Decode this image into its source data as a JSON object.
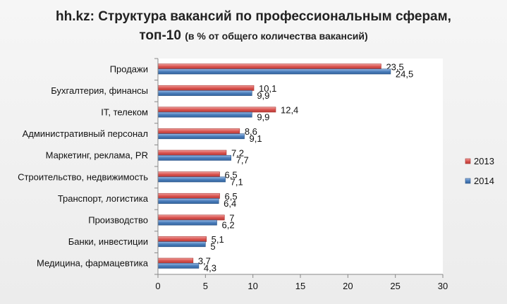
{
  "chart_data": {
    "type": "bar",
    "orientation": "horizontal",
    "title": "hh.kz: Структура вакансий по профессиональным сферам,",
    "title_line2": "топ-10",
    "subtitle": "(в % от общего количества вакансий)",
    "categories": [
      "Продажи",
      "Бухгалтерия, финансы",
      "IT, телеком",
      "Административный персонал",
      "Маркетинг, реклама, PR",
      "Строительство, недвижимость",
      "Транспорт, логистика",
      "Производство",
      "Банки, инвестиции",
      "Медицина, фармацевтика"
    ],
    "series": [
      {
        "name": "2013",
        "color": "#d9534f",
        "values": [
          23.5,
          10.1,
          12.4,
          8.6,
          7.2,
          6.5,
          6.5,
          7,
          5.1,
          3.7
        ],
        "labels": [
          "23,5",
          "10,1",
          "12,4",
          "8,6",
          "7,2",
          "6,5",
          "6,5",
          "7",
          "5,1",
          "3,7"
        ]
      },
      {
        "name": "2014",
        "color": "#4a7ebb",
        "values": [
          24.5,
          9.9,
          9.9,
          9.1,
          7.7,
          7.1,
          6.4,
          6.2,
          5,
          4.3
        ],
        "labels": [
          "24,5",
          "9,9",
          "9,9",
          "9,1",
          "7,7",
          "7,1",
          "6,4",
          "6,2",
          "5",
          "4,3"
        ]
      }
    ],
    "xlim": [
      0,
      30
    ],
    "xticks": [
      "0",
      "5",
      "10",
      "15",
      "20",
      "25",
      "30"
    ],
    "xtick_values": [
      0,
      5,
      10,
      15,
      20,
      25,
      30
    ],
    "grid": false,
    "legend_position": "right"
  }
}
